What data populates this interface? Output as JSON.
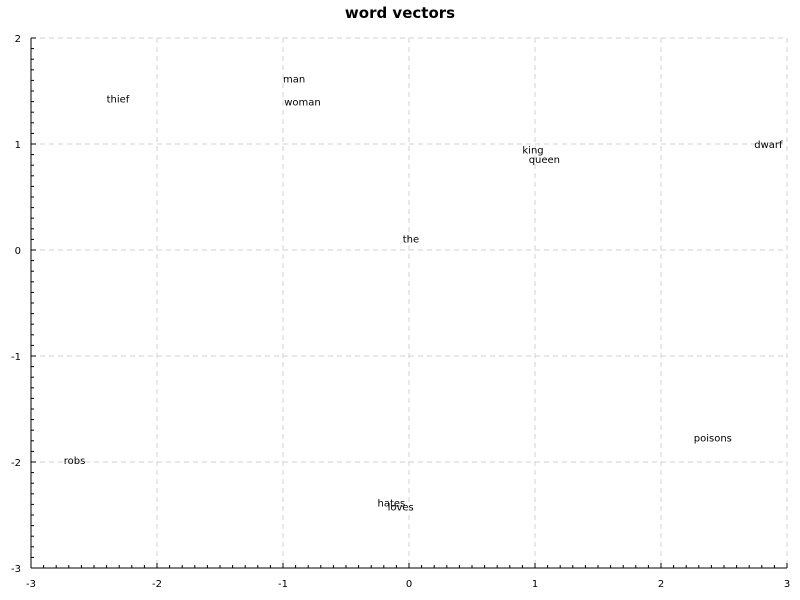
{
  "chart_data": {
    "type": "scatter",
    "title": "word vectors",
    "xlabel": "",
    "ylabel": "",
    "xlim": [
      -3,
      3
    ],
    "ylim": [
      -3,
      2
    ],
    "grid": true,
    "x_ticks": [
      -3,
      -2,
      -1,
      0,
      1,
      2,
      3
    ],
    "y_ticks": [
      -3,
      -2,
      -1,
      0,
      1,
      2
    ],
    "points": [
      {
        "label": "man",
        "x": -1.0,
        "y": 1.62
      },
      {
        "label": "woman",
        "x": -0.99,
        "y": 1.4
      },
      {
        "label": "thief",
        "x": -2.4,
        "y": 1.43
      },
      {
        "label": "king",
        "x": 0.9,
        "y": 0.95
      },
      {
        "label": "queen",
        "x": 0.95,
        "y": 0.86
      },
      {
        "label": "dwarf",
        "x": 2.74,
        "y": 1.0
      },
      {
        "label": "the",
        "x": -0.05,
        "y": 0.11
      },
      {
        "label": "robs",
        "x": -2.74,
        "y": -1.98
      },
      {
        "label": "poisons",
        "x": 2.26,
        "y": -1.77
      },
      {
        "label": "hates",
        "x": -0.25,
        "y": -2.38
      },
      {
        "label": "loves",
        "x": -0.17,
        "y": -2.42
      }
    ]
  }
}
